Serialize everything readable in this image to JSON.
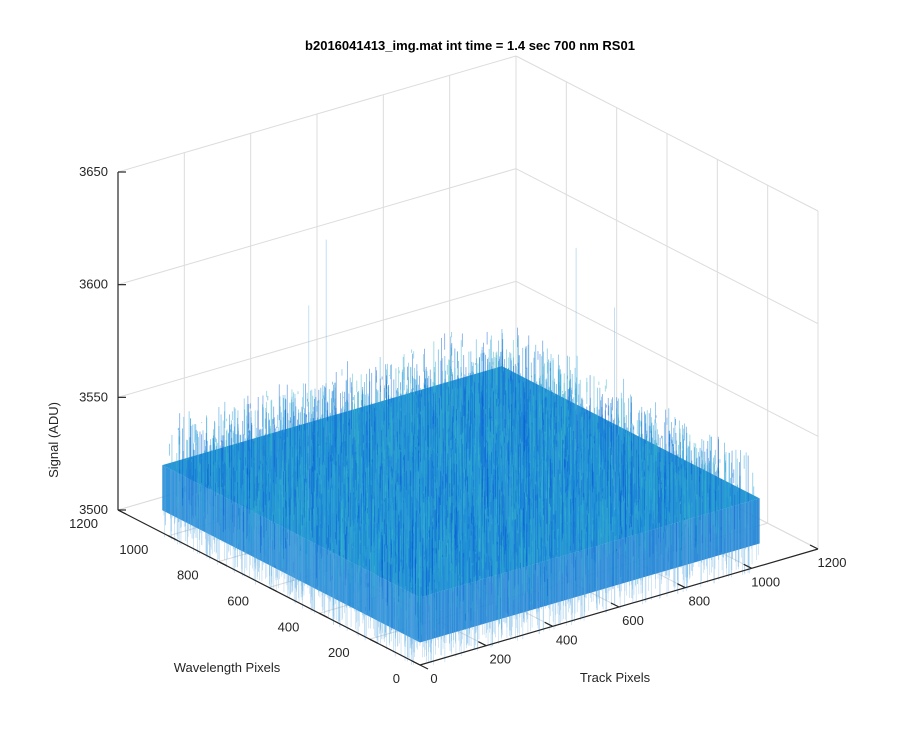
{
  "chart_data": {
    "type": "surface",
    "title": "b2016041413_img.mat int time = 1.4 sec  700 nm RS01",
    "xlabel": "Track Pixels",
    "ylabel": "Wavelength Pixels",
    "zlabel": "Signal (ADU)",
    "xlim": [
      0,
      1200
    ],
    "ylim": [
      0,
      1200
    ],
    "zlim": [
      3500,
      3650
    ],
    "xticks": [
      "0",
      "200",
      "400",
      "600",
      "800",
      "1000",
      "1200"
    ],
    "yticks": [
      "0",
      "200",
      "400",
      "600",
      "800",
      "1000",
      "1200"
    ],
    "zticks": [
      "3500",
      "3550",
      "3600",
      "3650"
    ],
    "surface": {
      "x_extent": [
        0,
        1024
      ],
      "y_extent": [
        0,
        1024
      ],
      "mean_signal": 3530,
      "noise_range": [
        3510,
        3560
      ],
      "max_spike": 3620,
      "colormap": [
        "#0a5fd6",
        "#1a8ad8",
        "#29a3d6",
        "#35b4c8"
      ]
    },
    "grid": true,
    "view": "3d-isometric"
  }
}
